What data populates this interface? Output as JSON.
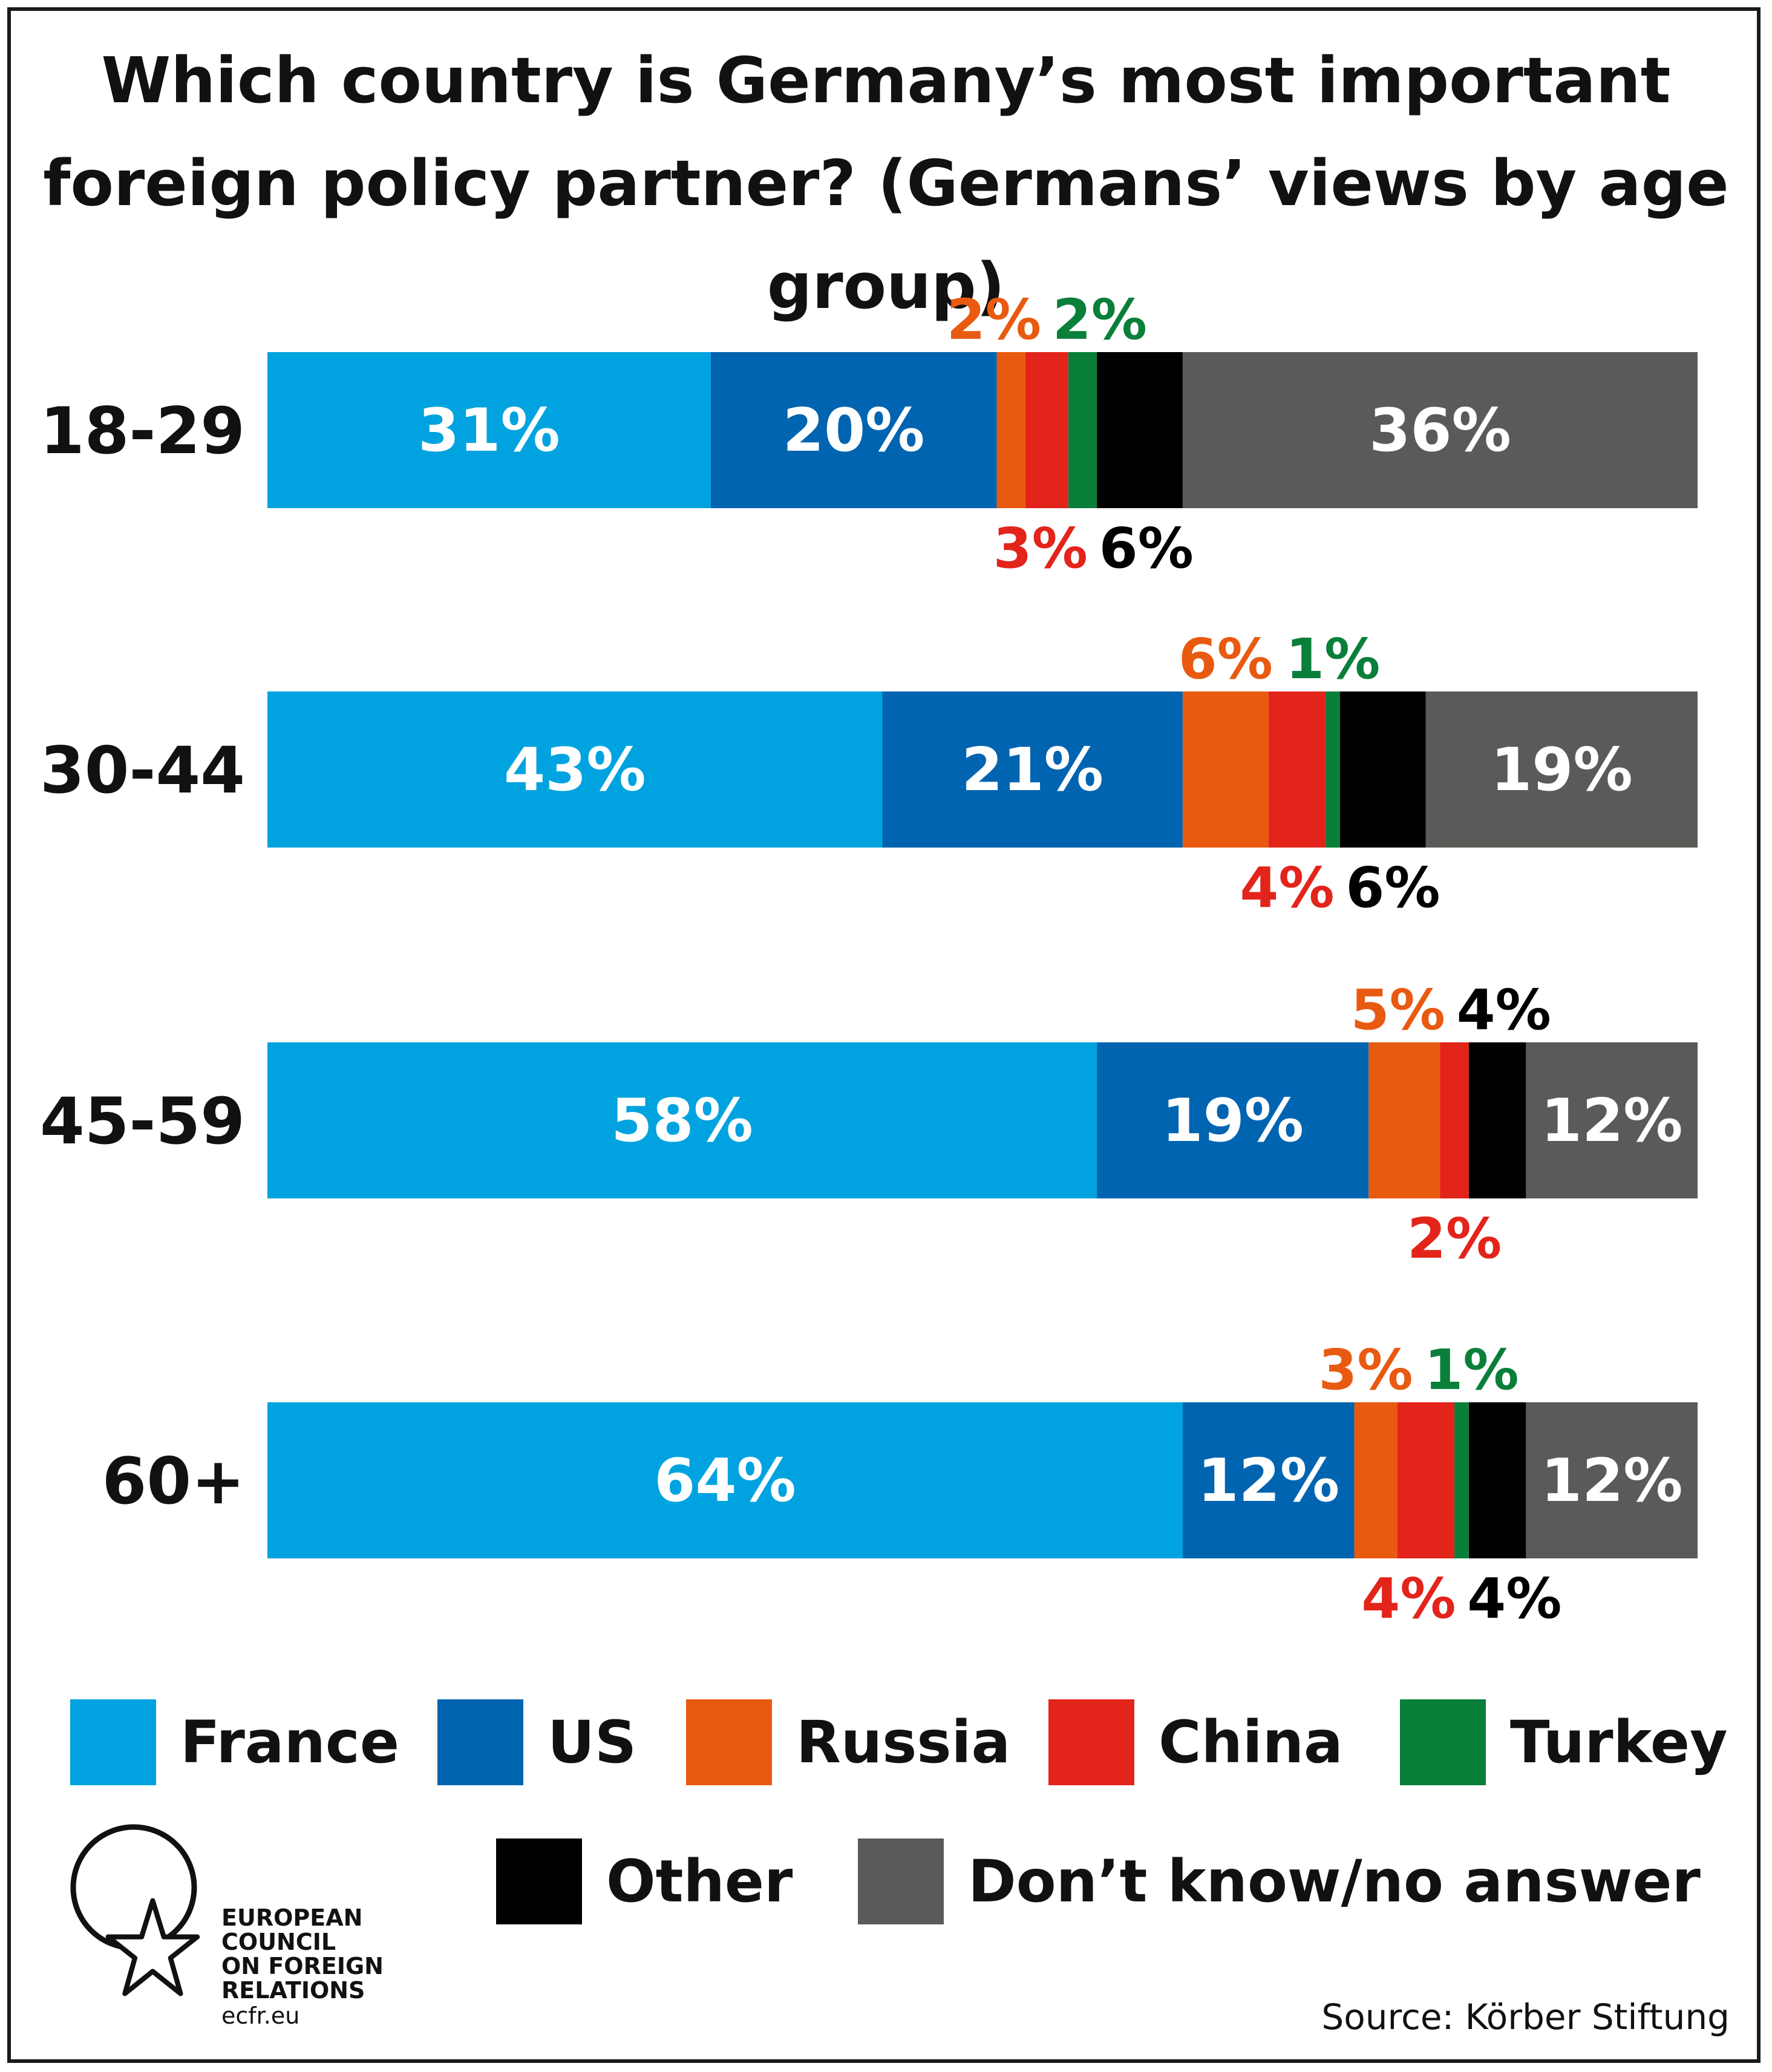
{
  "title": "Which country is Germany’s most important foreign policy partner? (Germans’ views by age group)",
  "source": "Source: Körber Stiftung",
  "logo": {
    "lines": [
      "EUROPEAN",
      "COUNCIL",
      "ON FOREIGN",
      "RELATIONS"
    ],
    "url": "ecfr.eu"
  },
  "colors": {
    "France": "#00a3e0",
    "US": "#0064b0",
    "Russia": "#e85a10",
    "China": "#e3241b",
    "Turkey": "#0a7f3a",
    "Other": "#000000",
    "Don’t know/no answer": "#5a5a58"
  },
  "legend": [
    {
      "label": "France",
      "color": "#00a3e0"
    },
    {
      "label": "US",
      "color": "#0064b0"
    },
    {
      "label": "Russia",
      "color": "#e85a10"
    },
    {
      "label": "China",
      "color": "#e3241b"
    },
    {
      "label": "Turkey",
      "color": "#0a7f3a"
    },
    {
      "label": "Other",
      "color": "#000000"
    },
    {
      "label": "Don’t know/no answer",
      "color": "#5a5a58"
    }
  ],
  "chart_data": {
    "type": "bar",
    "orientation": "horizontal",
    "stacked": true,
    "title": "Which country is Germany’s most important foreign policy partner? (Germans’ views by age group)",
    "categories": [
      "18-29",
      "30-44",
      "45-59",
      "60+"
    ],
    "series": [
      {
        "name": "France",
        "values": [
          31,
          43,
          58,
          64
        ],
        "labels": [
          "31%",
          "43%",
          "58%",
          "64%"
        ]
      },
      {
        "name": "US",
        "values": [
          20,
          21,
          19,
          12
        ],
        "labels": [
          "20%",
          "21%",
          "19%",
          "12%"
        ]
      },
      {
        "name": "Russia",
        "values": [
          2,
          6,
          5,
          3
        ],
        "labels": [
          "2%",
          "6%",
          "5%",
          "3%"
        ]
      },
      {
        "name": "China",
        "values": [
          3,
          4,
          2,
          4
        ],
        "labels": [
          "3%",
          "4%",
          "2%",
          "4%"
        ]
      },
      {
        "name": "Turkey",
        "values": [
          2,
          1,
          0,
          1
        ],
        "labels": [
          "2%",
          "1%",
          "",
          "1%"
        ]
      },
      {
        "name": "Other",
        "values": [
          6,
          6,
          4,
          4
        ],
        "labels": [
          "6%",
          "6%",
          "4%",
          "4%"
        ]
      },
      {
        "name": "Don’t know/no answer",
        "values": [
          36,
          19,
          12,
          12
        ],
        "labels": [
          "36%",
          "19%",
          "12%",
          "12%"
        ]
      }
    ],
    "label_placement": {
      "inside": [
        "France",
        "US",
        "Don’t know/no answer"
      ],
      "18-29": {
        "Russia": "above",
        "Turkey": "above",
        "China": "below",
        "Other": "below"
      },
      "30-44": {
        "Russia": "above",
        "Turkey": "above",
        "China": "below",
        "Other": "below"
      },
      "45-59": {
        "Russia": "above",
        "Other": "above",
        "China": "below"
      },
      "60+": {
        "Russia": "above",
        "Turkey": "above",
        "China": "below",
        "Other": "below"
      }
    },
    "xlim": [
      0,
      100
    ],
    "legend_position": "bottom",
    "grid": false
  }
}
